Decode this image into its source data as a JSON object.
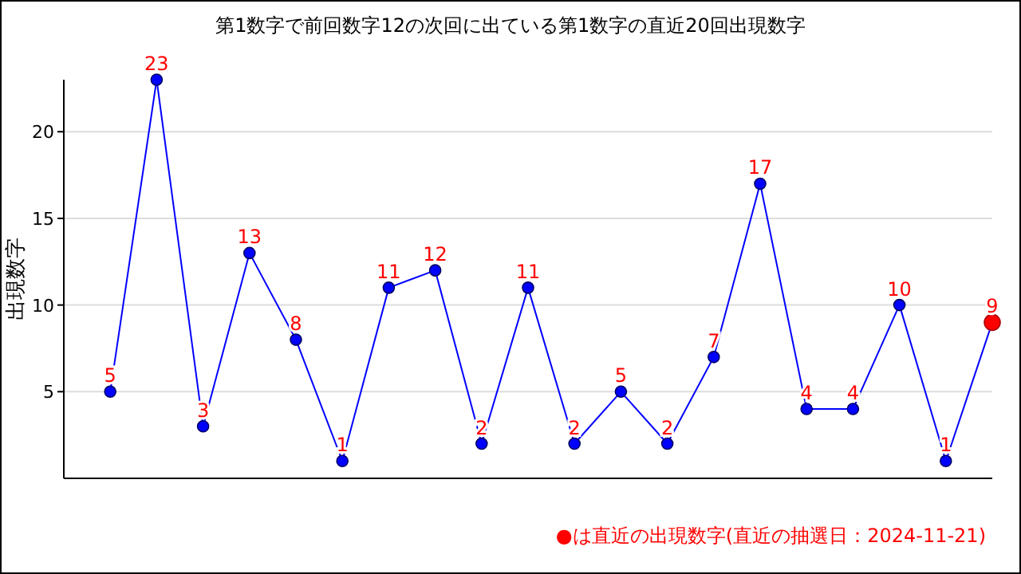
{
  "chart_data": {
    "type": "line",
    "title": "第1数字で前回数字12の次回に出ている第1数字の直近20回出現数字",
    "ylabel": "出現数字",
    "categories": [
      null,
      null,
      null,
      null,
      null,
      null,
      null,
      null,
      null,
      null,
      null,
      null,
      null,
      null,
      null,
      null,
      null,
      null,
      null,
      null
    ],
    "series": [
      {
        "color": "#0000ff",
        "values": [
          5,
          23,
          3,
          13,
          8,
          1,
          11,
          12,
          2,
          11,
          2,
          5,
          2,
          7,
          17,
          4,
          4,
          10,
          1,
          9
        ],
        "colors": [
          "#0000ff",
          "#0000ff",
          "#0000ff",
          "#0000ff",
          "#0000ff",
          "#0000ff",
          "#0000ff",
          "#0000ff",
          "#0000ff",
          "#0000ff",
          "#0000ff",
          "#0000ff",
          "#0000ff",
          "#0000ff",
          "#0000ff",
          "#0000ff",
          "#0000ff",
          "#0000ff",
          "#0000ff",
          "#ff0000"
        ]
      }
    ],
    "ylim": [
      0,
      23
    ],
    "yticks": [
      5,
      10,
      15,
      20
    ],
    "grid": "y",
    "marker": "circle",
    "line_style": "solid",
    "data_labels": true,
    "annotations": [
      "●は直近の出現数字(直近の抽選日：2024-11-21)"
    ]
  }
}
